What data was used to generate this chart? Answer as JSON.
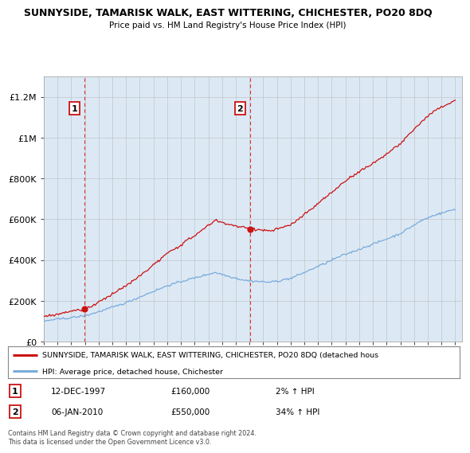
{
  "title": "SUNNYSIDE, TAMARISK WALK, EAST WITTERING, CHICHESTER, PO20 8DQ",
  "subtitle": "Price paid vs. HM Land Registry's House Price Index (HPI)",
  "ylim": [
    0,
    1300000
  ],
  "yticks": [
    0,
    200000,
    400000,
    600000,
    800000,
    1000000,
    1200000
  ],
  "ytick_labels": [
    "£0",
    "£200K",
    "£400K",
    "£600K",
    "£800K",
    "£1M",
    "£1.2M"
  ],
  "x_start_year": 1995,
  "x_end_year": 2025,
  "sale1_year": 1997.95,
  "sale1_price": 160000,
  "sale1_date": "12-DEC-1997",
  "sale1_hpi_diff": "2% ↑ HPI",
  "sale2_year": 2010.02,
  "sale2_price": 550000,
  "sale2_date": "06-JAN-2010",
  "sale2_hpi_diff": "34% ↑ HPI",
  "hpi_color": "#7aabdb",
  "property_color": "#cc1111",
  "dashed_line_color": "#dd3333",
  "plot_bg_color": "#dce9f5",
  "legend_property_label": "SUNNYSIDE, TAMARISK WALK, EAST WITTERING, CHICHESTER, PO20 8DQ (detached hous",
  "legend_hpi_label": "HPI: Average price, detached house, Chichester",
  "footer": "Contains HM Land Registry data © Crown copyright and database right 2024.\nThis data is licensed under the Open Government Licence v3.0.",
  "background_color": "#ffffff",
  "grid_color": "#bbbbbb"
}
